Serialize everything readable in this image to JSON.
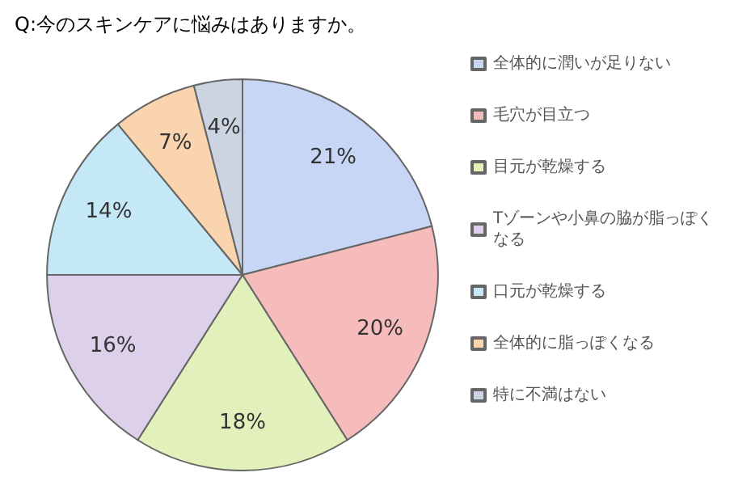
{
  "chart_data": {
    "type": "pie",
    "title": "Q:今のスキンケアに悩みはありますか。",
    "categories": [
      "全体的に潤いが足りない",
      "毛穴が目立つ",
      "目元が乾燥する",
      "Tゾーンや小鼻の脇が脂っぽくなる",
      "口元が乾燥する",
      "全体的に脂っぽくなる",
      "特に不満はない"
    ],
    "values": [
      21,
      20,
      18,
      16,
      14,
      7,
      4
    ],
    "colors": [
      "#c6d6f4",
      "#f6bcbc",
      "#e2f0bc",
      "#dcd0ea",
      "#c4e8f6",
      "#fad4ae",
      "#ccd4e2"
    ],
    "value_labels": [
      "21%",
      "20%",
      "18%",
      "16%",
      "14%",
      "7%",
      "4%"
    ],
    "legend": "right"
  }
}
